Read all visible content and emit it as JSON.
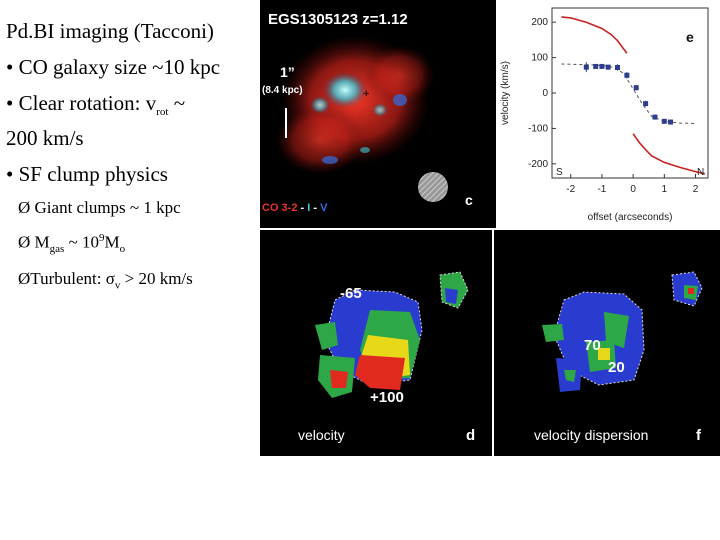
{
  "text": {
    "title": "Pd.BI imaging (Tacconi)",
    "b1": "• CO galaxy size ~10 kpc",
    "b2_pre": "• Clear rotation: v",
    "b2_sub": "rot",
    "b2_post": " ~",
    "b2_line2": "200 km/s",
    "b3": "• SF clump physics",
    "s1": "Ø Giant clumps ~ 1 kpc",
    "s2_pre": "Ø M",
    "s2_sub": "gas",
    "s2_mid": " ~ 10",
    "s2_sup": "9",
    "s2_post": "M",
    "s2_sub2": "o",
    "s3_pre": "ØTurbulent: σ",
    "s3_sub": "v",
    "s3_post": " > 20 km/s"
  },
  "panel_c": {
    "title": "EGS1305123 z=1.12",
    "scale1": "1”",
    "scale2": "(8.4 kpc)",
    "legend_co": "CO 3-2",
    "legend_sep1": " - ",
    "legend_i": "I",
    "legend_sep2": " - ",
    "legend_v": "V",
    "letter": "c",
    "colors": {
      "co": "#e8332a",
      "i": "#3ec7d6",
      "v": "#2f6fe0"
    }
  },
  "panel_d": {
    "label": "velocity",
    "letter": "d",
    "neg": "-65",
    "pos": "+100"
  },
  "panel_f": {
    "label": "velocity dispersion",
    "letter": "f",
    "v70": "70",
    "v20": "20"
  },
  "chart_data": {
    "type": "line",
    "letter": "e",
    "xlabel": "offset (arcseconds)",
    "ylabel": "velocity (km/s)",
    "xlim": [
      -2.6,
      2.4
    ],
    "ylim": [
      -240,
      240
    ],
    "xticks": [
      -2,
      -1,
      0,
      1,
      2
    ],
    "yticks": [
      -200,
      -100,
      0,
      100,
      200
    ],
    "corner_left": "S",
    "corner_right": "N",
    "series": [
      {
        "kind": "points",
        "color": "#2d3f8c",
        "x": [
          -1.5,
          -1.2,
          -1.0,
          -0.8,
          -0.5,
          -0.2,
          0.1,
          0.4,
          0.7,
          1.0,
          1.2
        ],
        "y": [
          73,
          75,
          75,
          73,
          72,
          50,
          15,
          -30,
          -68,
          -80,
          -82
        ],
        "err": [
          14,
          6,
          5,
          6,
          9,
          9,
          8,
          8,
          7,
          6,
          7
        ]
      },
      {
        "kind": "dashed",
        "color": "#555555",
        "x": [
          -2.3,
          -1.5,
          -1.0,
          -0.6,
          -0.3,
          0.0,
          0.3,
          0.6,
          1.0,
          1.5,
          2.0
        ],
        "y": [
          82,
          80,
          78,
          72,
          55,
          12,
          -32,
          -66,
          -80,
          -85,
          -86
        ]
      },
      {
        "kind": "curve",
        "color": "#c8211f",
        "x": [
          -2.3,
          -2.0,
          -1.5,
          -1.0,
          -0.7,
          -0.5,
          -0.35,
          -0.2
        ],
        "y": [
          215,
          212,
          200,
          182,
          165,
          148,
          130,
          112
        ]
      },
      {
        "kind": "curve",
        "color": "#c8211f",
        "x": [
          0.0,
          0.2,
          0.4,
          0.6,
          1.0,
          1.5,
          2.0,
          2.3
        ],
        "y": [
          -115,
          -140,
          -160,
          -178,
          -196,
          -210,
          -222,
          -228
        ]
      }
    ]
  }
}
